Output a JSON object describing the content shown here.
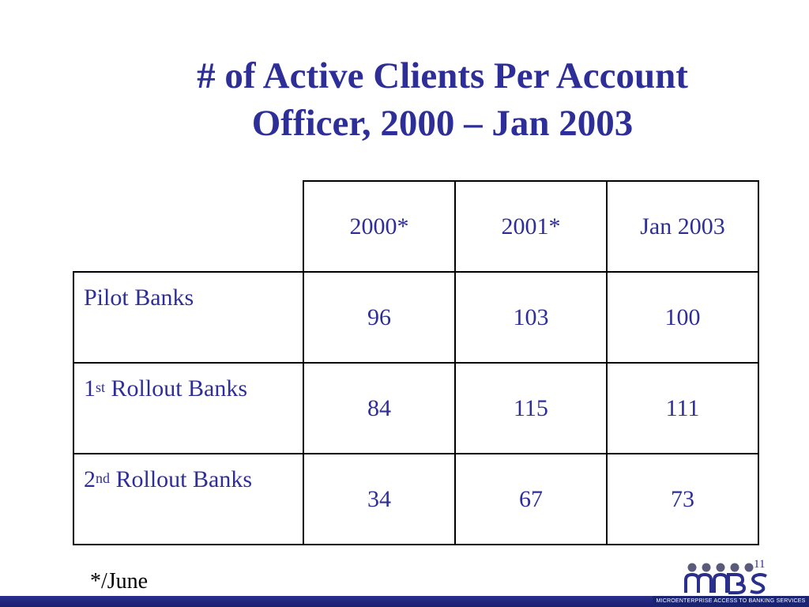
{
  "title": {
    "line1": "# of Active Clients Per Account",
    "line2": "Officer, 2000 – Jan 2003"
  },
  "table": {
    "columns": [
      "2000*",
      "2001*",
      "Jan 2003"
    ],
    "rows": [
      {
        "label_main": "Pilot Banks",
        "label_sup": "",
        "label_rest": "",
        "values": [
          "96",
          "103",
          "100"
        ]
      },
      {
        "label_main": "1",
        "label_sup": "st",
        "label_rest": " Rollout Banks",
        "values": [
          "84",
          "115",
          "111"
        ]
      },
      {
        "label_main": "2",
        "label_sup": "nd",
        "label_rest": " Rollout Banks",
        "values": [
          "34",
          "67",
          "73"
        ]
      }
    ]
  },
  "footnote": "*/June",
  "page_number": "11",
  "logo": {
    "tagline": "MICROENTERPRISE ACCESS TO BANKING SERVICES",
    "icon": "mabs-logo-icon"
  },
  "colors": {
    "title": "#2e2e99",
    "table_text": "#2e2e99",
    "bar": "#2a2f8c"
  }
}
